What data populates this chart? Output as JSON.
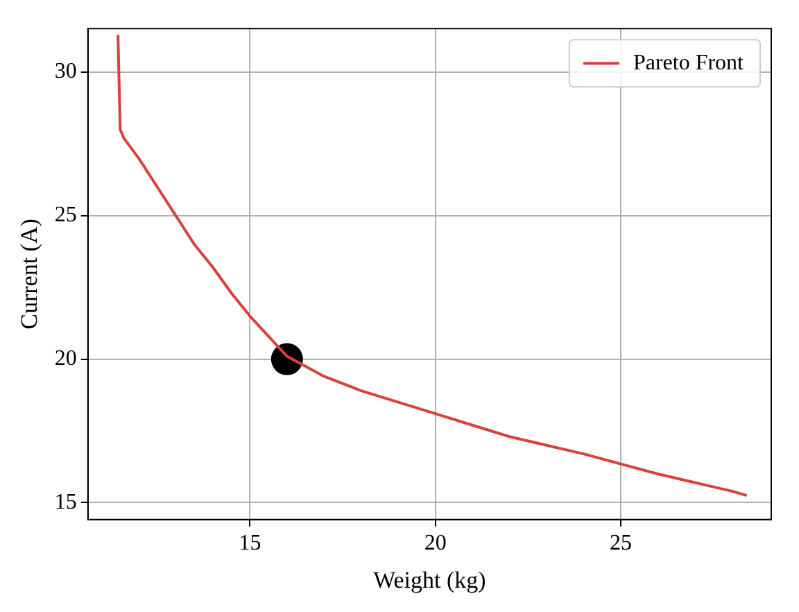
{
  "chart_data": {
    "type": "line",
    "xlabel": "Weight (kg)",
    "ylabel": "Current (A)",
    "xlim": [
      10.63,
      29.06
    ],
    "ylim": [
      14.41,
      31.52
    ],
    "xticks": [
      15,
      20,
      25
    ],
    "yticks": [
      15,
      20,
      25,
      30
    ],
    "grid": true,
    "legend": "top right",
    "series": [
      {
        "name": "Pareto Front",
        "color": "#d9413a",
        "marker": "none",
        "x": [
          11.44,
          11.5,
          11.6,
          12,
          12.5,
          13,
          13.5,
          14,
          14.5,
          15,
          15.5,
          16,
          17,
          18,
          19,
          20,
          21,
          22,
          23,
          24,
          25,
          26,
          27,
          28,
          28.4
        ],
        "values": [
          31.3,
          28.0,
          27.7,
          27.0,
          26.0,
          25.0,
          24.0,
          23.2,
          22.3,
          21.5,
          20.8,
          20.1,
          19.4,
          18.9,
          18.5,
          18.1,
          17.7,
          17.3,
          17.0,
          16.7,
          16.35,
          16.0,
          15.7,
          15.4,
          15.25
        ]
      },
      {
        "type": "scatter",
        "color": "#000000",
        "marker": "circle",
        "x": [
          16
        ],
        "values": [
          20
        ]
      }
    ]
  }
}
